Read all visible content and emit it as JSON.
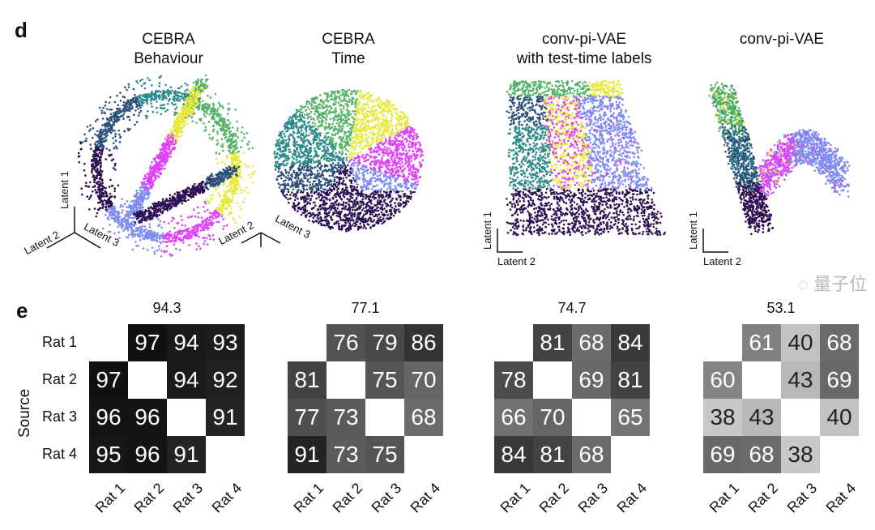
{
  "panel_d": {
    "label": "d",
    "embeddings": [
      {
        "title_line1": "CEBRA",
        "title_line2": "Behaviour",
        "axes": [
          "Latent 1",
          "Latent 2",
          "Latent 3"
        ]
      },
      {
        "title_line1": "CEBRA",
        "title_line2": "Time",
        "axes": [
          "Latent 2",
          "Latent 3"
        ]
      },
      {
        "title_line1": "conv-pi-VAE",
        "title_line2": "with test-time labels",
        "axes": [
          "Latent 1",
          "Latent 2"
        ]
      },
      {
        "title_line1": "conv-pi-VAE",
        "title_line2": "",
        "axes": [
          "Latent 1",
          "Latent 2"
        ]
      }
    ],
    "colormap": [
      "#2d1153",
      "#2c4f7a",
      "#2f8a8a",
      "#57b36a",
      "#e6e83a",
      "#e040fb",
      "#7f8cf0",
      "#55d8f0"
    ]
  },
  "panel_e": {
    "label": "e",
    "ylabel": "Source",
    "row_labels": [
      "Rat 1",
      "Rat 2",
      "Rat 3",
      "Rat 4"
    ],
    "col_labels": [
      "Rat 1",
      "Rat 2",
      "Rat 3",
      "Rat 4"
    ]
  },
  "chart_data": [
    {
      "type": "heatmap",
      "title": "94.3",
      "rows": [
        "Rat 1",
        "Rat 2",
        "Rat 3",
        "Rat 4"
      ],
      "cols": [
        "Rat 1",
        "Rat 2",
        "Rat 3",
        "Rat 4"
      ],
      "values": [
        [
          null,
          97,
          94,
          93
        ],
        [
          97,
          null,
          94,
          92
        ],
        [
          96,
          96,
          null,
          91
        ],
        [
          95,
          96,
          91,
          null
        ]
      ]
    },
    {
      "type": "heatmap",
      "title": "77.1",
      "rows": [
        "Rat 1",
        "Rat 2",
        "Rat 3",
        "Rat 4"
      ],
      "cols": [
        "Rat 1",
        "Rat 2",
        "Rat 3",
        "Rat 4"
      ],
      "values": [
        [
          null,
          76,
          79,
          86
        ],
        [
          81,
          null,
          75,
          70
        ],
        [
          77,
          73,
          null,
          68
        ],
        [
          91,
          73,
          75,
          null
        ]
      ]
    },
    {
      "type": "heatmap",
      "title": "74.7",
      "rows": [
        "Rat 1",
        "Rat 2",
        "Rat 3",
        "Rat 4"
      ],
      "cols": [
        "Rat 1",
        "Rat 2",
        "Rat 3",
        "Rat 4"
      ],
      "values": [
        [
          null,
          81,
          68,
          84
        ],
        [
          78,
          null,
          69,
          81
        ],
        [
          66,
          70,
          null,
          65
        ],
        [
          84,
          81,
          68,
          null
        ]
      ]
    },
    {
      "type": "heatmap",
      "title": "53.1",
      "rows": [
        "Rat 1",
        "Rat 2",
        "Rat 3",
        "Rat 4"
      ],
      "cols": [
        "Rat 1",
        "Rat 2",
        "Rat 3",
        "Rat 4"
      ],
      "values": [
        [
          null,
          61,
          40,
          68
        ],
        [
          60,
          null,
          43,
          69
        ],
        [
          38,
          43,
          null,
          40
        ],
        [
          69,
          68,
          38,
          null
        ]
      ]
    }
  ],
  "watermark": "量子位"
}
